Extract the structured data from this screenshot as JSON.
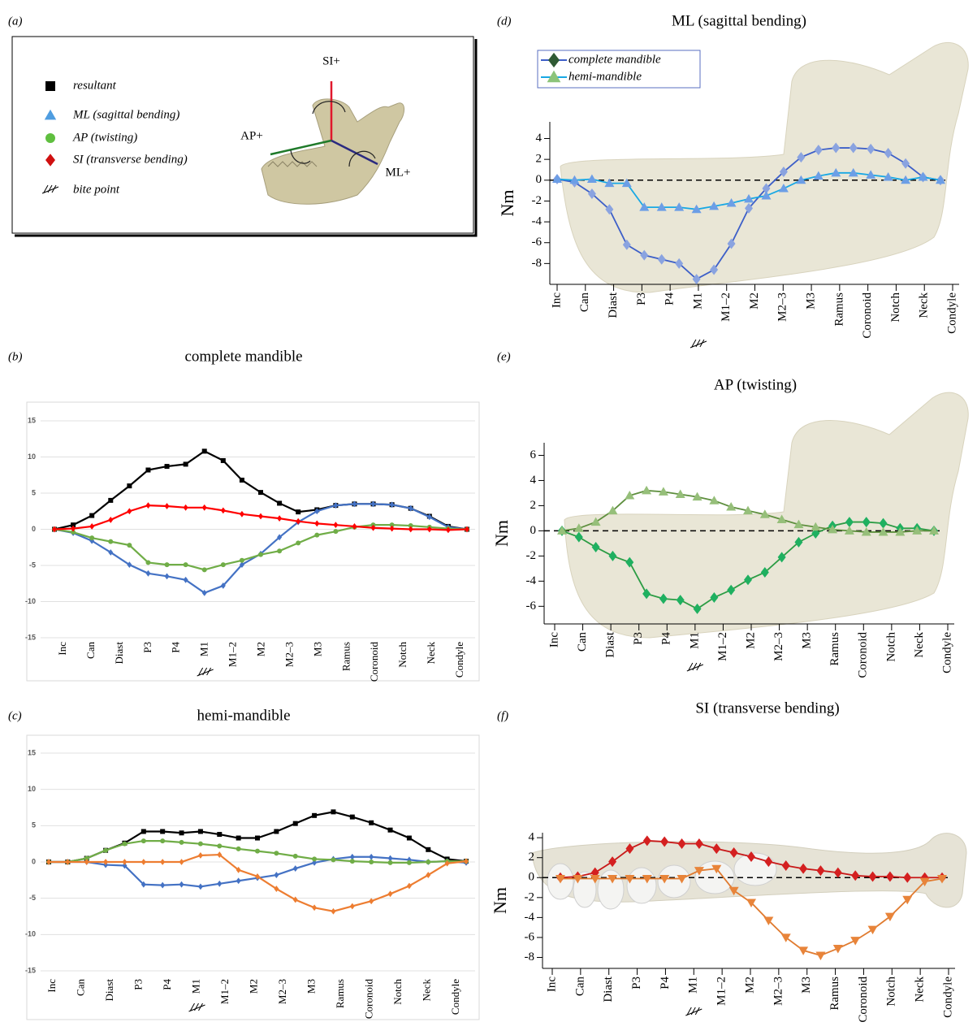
{
  "panel_a": {
    "label": "(a)",
    "items": [
      {
        "text": "resultant",
        "color": "#000000",
        "marker": "square"
      },
      {
        "text": "ML (sagittal bending)",
        "color": "#4f9de0",
        "marker": "triangle"
      },
      {
        "text": "AP (twisting)",
        "color": "#5fbf3f",
        "marker": "circle"
      },
      {
        "text": "SI (transverse bending)",
        "color": "#d01010",
        "marker": "diamond"
      }
    ],
    "bite_point": "bite point",
    "axes": {
      "si": "SI+",
      "ap": "AP+",
      "ml": "ML+"
    }
  },
  "chart_data": [
    {
      "type": "line",
      "panel_label": "(b)",
      "title": "complete mandible",
      "style": "excel",
      "grid": true,
      "x_labels": [
        "Inc",
        "Can",
        "Diast",
        "P3",
        "P4",
        "M1",
        "M1–2",
        "M2",
        "M2–3",
        "M3",
        "Ramus",
        "Coronoid",
        "Notch",
        "Neck",
        "Condyle"
      ],
      "ylim": [
        -15,
        15
      ],
      "yticks": [
        -15,
        -10,
        -5,
        0,
        5,
        10,
        15
      ],
      "series": [
        {
          "color": "#000000",
          "marker": "square",
          "values": [
            0,
            0.6,
            1.9,
            4.0,
            6.0,
            8.2,
            8.7,
            9.0,
            10.8,
            9.5,
            6.8,
            5.1,
            3.6,
            2.4,
            2.7,
            3.3,
            3.5,
            3.5,
            3.4,
            2.9,
            1.8,
            0.4,
            0
          ]
        },
        {
          "color": "#4472c4",
          "marker": "diamond",
          "values": [
            0,
            -0.5,
            -1.6,
            -3.2,
            -4.9,
            -6.1,
            -6.5,
            -7.0,
            -8.8,
            -7.8,
            -4.9,
            -3.4,
            -1.1,
            1.0,
            2.5,
            3.3,
            3.5,
            3.5,
            3.4,
            2.9,
            1.7,
            0.3,
            0
          ]
        },
        {
          "color": "#70ad47",
          "marker": "circle",
          "values": [
            0,
            -0.4,
            -1.2,
            -1.7,
            -2.2,
            -4.6,
            -4.9,
            -4.9,
            -5.6,
            -4.9,
            -4.3,
            -3.5,
            -3.0,
            -1.9,
            -0.8,
            -0.3,
            0.3,
            0.6,
            0.6,
            0.5,
            0.3,
            0.1,
            0
          ]
        },
        {
          "color": "#ff0000",
          "marker": "diamond",
          "values": [
            0,
            0.1,
            0.4,
            1.3,
            2.5,
            3.3,
            3.2,
            3.0,
            3.0,
            2.6,
            2.1,
            1.8,
            1.5,
            1.1,
            0.8,
            0.6,
            0.4,
            0.2,
            0.1,
            0.0,
            0.0,
            -0.1,
            0
          ]
        }
      ]
    },
    {
      "type": "line",
      "panel_label": "(c)",
      "title": "hemi-mandible",
      "style": "excel",
      "grid": true,
      "x_labels": [
        "Inc",
        "Can",
        "Diast",
        "P3",
        "P4",
        "M1",
        "M1–2",
        "M2",
        "M2–3",
        "M3",
        "Ramus",
        "Coronoid",
        "Notch",
        "Neck",
        "Condyle"
      ],
      "ylim": [
        -15,
        15
      ],
      "yticks": [
        -15,
        -10,
        -5,
        0,
        5,
        10,
        15
      ],
      "series": [
        {
          "color": "#000000",
          "marker": "square",
          "values": [
            0,
            0,
            0.5,
            1.6,
            2.6,
            4.2,
            4.2,
            4.0,
            4.2,
            3.8,
            3.3,
            3.3,
            4.2,
            5.3,
            6.4,
            6.9,
            6.2,
            5.4,
            4.4,
            3.3,
            1.7,
            0.4,
            0.1
          ]
        },
        {
          "color": "#4472c4",
          "marker": "diamond",
          "values": [
            0,
            0,
            0,
            -0.4,
            -0.5,
            -3.1,
            -3.2,
            -3.1,
            -3.4,
            -3.0,
            -2.6,
            -2.2,
            -1.8,
            -0.9,
            -0.1,
            0.4,
            0.7,
            0.7,
            0.5,
            0.3,
            0.0,
            0.1,
            -0.1
          ]
        },
        {
          "color": "#70ad47",
          "marker": "circle",
          "values": [
            0,
            0,
            0.5,
            1.6,
            2.5,
            2.9,
            2.9,
            2.7,
            2.5,
            2.2,
            1.8,
            1.5,
            1.2,
            0.8,
            0.4,
            0.3,
            0.1,
            0.0,
            -0.1,
            -0.1,
            0.0,
            0.1,
            0.1
          ]
        },
        {
          "color": "#ed7d31",
          "marker": "diamond",
          "values": [
            0,
            0,
            0,
            0,
            0,
            0,
            0,
            0,
            0.9,
            1.0,
            -1.1,
            -2.0,
            -3.7,
            -5.2,
            -6.3,
            -6.8,
            -6.1,
            -5.4,
            -4.4,
            -3.3,
            -1.8,
            -0.2,
            0.1
          ]
        }
      ]
    },
    {
      "type": "line",
      "panel_label": "(d)",
      "title": "ML (sagittal bending)",
      "style": "axis",
      "grid": false,
      "zero_line": true,
      "y_label": "Nm",
      "legend": "top-left",
      "x_labels": [
        "Inc",
        "Can",
        "Diast",
        "P3",
        "P4",
        "M1",
        "M1–2",
        "M2",
        "M2–3",
        "M3",
        "Ramus",
        "Coronoid",
        "Notch",
        "Neck",
        "Condyle"
      ],
      "ylim": [
        -10,
        5.6
      ],
      "yticks": [
        -8,
        -6,
        -4,
        -2,
        0,
        2,
        4
      ],
      "series": [
        {
          "name": "complete mandible",
          "color": "#3d5fc8",
          "marker_color": "#8aa3e0",
          "legend_marker_color": "#2f5a34",
          "marker": "diamond",
          "values": [
            0.1,
            -0.2,
            -1.3,
            -2.8,
            -6.2,
            -7.2,
            -7.6,
            -8.0,
            -9.5,
            -8.6,
            -6.1,
            -2.7,
            -0.8,
            0.8,
            2.2,
            2.9,
            3.1,
            3.1,
            3.0,
            2.6,
            1.6,
            0.3,
            0
          ]
        },
        {
          "name": "hemi-mandible",
          "color": "#18a8e4",
          "marker_color": "#6c9ee6",
          "legend_marker_color": "#8cc47a",
          "marker": "triangle",
          "values": [
            0.1,
            0.0,
            0.1,
            -0.3,
            -0.3,
            -2.6,
            -2.6,
            -2.6,
            -2.8,
            -2.5,
            -2.2,
            -1.8,
            -1.5,
            -0.8,
            0.0,
            0.4,
            0.7,
            0.7,
            0.5,
            0.3,
            0.0,
            0.3,
            0.0
          ]
        }
      ]
    },
    {
      "type": "line",
      "panel_label": "(e)",
      "title": "AP (twisting)",
      "style": "axis",
      "grid": false,
      "zero_line": true,
      "y_label": "Nm",
      "x_labels": [
        "Inc",
        "Can",
        "Diast",
        "P3",
        "P4",
        "M1",
        "M1–2",
        "M2",
        "M2–3",
        "M3",
        "Ramus",
        "Coronoid",
        "Notch",
        "Neck",
        "Condyle"
      ],
      "ylim": [
        -7.4,
        7
      ],
      "yticks": [
        -6,
        -4,
        -2,
        0,
        2,
        4,
        6
      ],
      "series": [
        {
          "color": "#2c9c44",
          "marker_color": "#1fb060",
          "marker": "diamond",
          "values": [
            0,
            -0.5,
            -1.3,
            -2.0,
            -2.5,
            -5.0,
            -5.4,
            -5.5,
            -6.2,
            -5.3,
            -4.7,
            -3.9,
            -3.3,
            -2.1,
            -0.9,
            -0.2,
            0.4,
            0.7,
            0.7,
            0.6,
            0.2,
            0.2,
            0.0
          ]
        },
        {
          "color": "#5e8f3e",
          "marker_color": "#96bf7a",
          "marker": "triangle",
          "values": [
            0,
            0.2,
            0.7,
            1.6,
            2.8,
            3.2,
            3.1,
            2.9,
            2.7,
            2.4,
            1.9,
            1.6,
            1.3,
            0.9,
            0.5,
            0.3,
            0.1,
            0.0,
            -0.1,
            -0.1,
            -0.1,
            0.0,
            0.0
          ]
        }
      ]
    },
    {
      "type": "line",
      "panel_label": "(f)",
      "title": "SI (transverse bending)",
      "style": "axis",
      "grid": false,
      "zero_line": true,
      "y_label": "Nm",
      "x_labels": [
        "Inc",
        "Can",
        "Diast",
        "P3",
        "P4",
        "M1",
        "M1–2",
        "M2",
        "M2–3",
        "M3",
        "Ramus",
        "Coronoid",
        "Notch",
        "Neck",
        "Condyle"
      ],
      "ylim": [
        -9.1,
        4.5
      ],
      "yticks": [
        -8,
        -6,
        -4,
        -2,
        0,
        2,
        4
      ],
      "series": [
        {
          "color": "#c81818",
          "marker_color": "#d42020",
          "marker": "diamond",
          "values": [
            0,
            0.1,
            0.5,
            1.6,
            2.9,
            3.7,
            3.6,
            3.4,
            3.4,
            2.9,
            2.5,
            2.1,
            1.6,
            1.2,
            0.9,
            0.7,
            0.5,
            0.2,
            0.1,
            0.1,
            0.0,
            0.0,
            0.0
          ]
        },
        {
          "color": "#e07b30",
          "marker_color": "#e8843a",
          "marker": "triangle-down",
          "values": [
            -0.1,
            -0.1,
            -0.1,
            -0.1,
            -0.1,
            -0.1,
            -0.1,
            -0.1,
            0.7,
            0.9,
            -1.3,
            -2.5,
            -4.3,
            -6.0,
            -7.3,
            -7.8,
            -7.1,
            -6.3,
            -5.2,
            -3.9,
            -2.2,
            -0.4,
            -0.1
          ]
        }
      ]
    }
  ]
}
